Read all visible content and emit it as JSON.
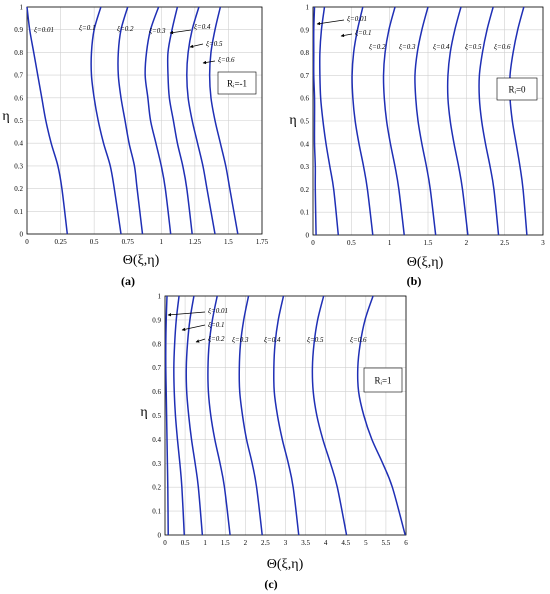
{
  "chart_data": [
    {
      "type": "line",
      "panel_label": "(a)",
      "xlabel": "Θ(ξ,η)",
      "ylabel": "η",
      "xlim": [
        0,
        1.75
      ],
      "ylim": [
        0,
        1
      ],
      "xticks": [
        "0",
        "0.25",
        "0.5",
        "0.75",
        "1",
        "1.25",
        "1.5",
        "1.75"
      ],
      "yticks": [
        "0",
        "0.1",
        "0.2",
        "0.3",
        "0.4",
        "0.5",
        "0.6",
        "0.7",
        "0.8",
        "0.9",
        "1"
      ],
      "grid": true,
      "parameter_box": {
        "text": "Rᵢ=-1",
        "position": "right"
      },
      "series": [
        {
          "name": "ξ=0.01",
          "x": [
            0.0,
            0.02,
            0.05,
            0.08,
            0.11,
            0.14,
            0.18,
            0.23,
            0.26,
            0.3
          ],
          "y": [
            1.0,
            0.9,
            0.8,
            0.7,
            0.6,
            0.5,
            0.4,
            0.3,
            0.2,
            0.0
          ]
        },
        {
          "name": "ξ=0.1",
          "x": [
            0.55,
            0.5,
            0.48,
            0.48,
            0.5,
            0.53,
            0.57,
            0.62,
            0.65,
            0.7
          ],
          "y": [
            1.0,
            0.9,
            0.8,
            0.7,
            0.6,
            0.5,
            0.4,
            0.3,
            0.2,
            0.0
          ]
        },
        {
          "name": "ξ=0.2",
          "x": [
            0.75,
            0.7,
            0.68,
            0.68,
            0.7,
            0.73,
            0.76,
            0.8,
            0.82,
            0.86
          ],
          "y": [
            1.0,
            0.9,
            0.8,
            0.7,
            0.6,
            0.5,
            0.4,
            0.3,
            0.2,
            0.0
          ]
        },
        {
          "name": "ξ=0.3",
          "x": [
            0.98,
            0.92,
            0.89,
            0.88,
            0.9,
            0.92,
            0.96,
            1.0,
            1.03,
            1.07
          ],
          "y": [
            1.0,
            0.9,
            0.8,
            0.7,
            0.6,
            0.5,
            0.4,
            0.3,
            0.2,
            0.0
          ]
        },
        {
          "name": "ξ=0.4",
          "x": [
            1.12,
            1.08,
            1.05,
            1.05,
            1.06,
            1.09,
            1.12,
            1.16,
            1.19,
            1.23
          ],
          "y": [
            1.0,
            0.9,
            0.8,
            0.7,
            0.6,
            0.5,
            0.4,
            0.3,
            0.2,
            0.0
          ]
        },
        {
          "name": "ξ=0.5",
          "x": [
            1.28,
            1.23,
            1.2,
            1.19,
            1.2,
            1.23,
            1.27,
            1.31,
            1.34,
            1.4
          ],
          "y": [
            1.0,
            0.9,
            0.8,
            0.7,
            0.6,
            0.5,
            0.4,
            0.3,
            0.2,
            0.0
          ]
        },
        {
          "name": "ξ=0.6",
          "x": [
            1.44,
            1.4,
            1.37,
            1.36,
            1.37,
            1.4,
            1.44,
            1.48,
            1.51,
            1.57
          ],
          "y": [
            1.0,
            0.9,
            0.8,
            0.7,
            0.6,
            0.5,
            0.4,
            0.3,
            0.2,
            0.0
          ]
        }
      ]
    },
    {
      "type": "line",
      "panel_label": "(b)",
      "xlabel": "Θ(ξ,η)",
      "ylabel": "η",
      "xlim": [
        0,
        3
      ],
      "ylim": [
        0,
        1
      ],
      "xticks": [
        "0",
        "0.5",
        "1",
        "1.5",
        "2",
        "2.5",
        "3"
      ],
      "yticks": [
        "0",
        "0.1",
        "0.2",
        "0.3",
        "0.4",
        "0.5",
        "0.6",
        "0.7",
        "0.8",
        "0.9",
        "1"
      ],
      "grid": true,
      "parameter_box": {
        "text": "Rᵢ=0",
        "position": "right"
      },
      "series": [
        {
          "name": "ξ=0.01",
          "x": [
            0.02,
            0.01,
            0.01,
            0.01,
            0.02,
            0.02,
            0.02,
            0.03,
            0.03,
            0.04
          ],
          "y": [
            1.0,
            0.9,
            0.8,
            0.7,
            0.6,
            0.5,
            0.4,
            0.3,
            0.2,
            0.0
          ]
        },
        {
          "name": "ξ=0.1",
          "x": [
            0.15,
            0.11,
            0.09,
            0.09,
            0.1,
            0.13,
            0.17,
            0.22,
            0.27,
            0.33
          ],
          "y": [
            1.0,
            0.9,
            0.8,
            0.7,
            0.6,
            0.5,
            0.4,
            0.3,
            0.2,
            0.0
          ]
        },
        {
          "name": "ξ=0.2",
          "x": [
            0.65,
            0.58,
            0.53,
            0.51,
            0.52,
            0.55,
            0.6,
            0.66,
            0.71,
            0.78
          ],
          "y": [
            1.0,
            0.9,
            0.8,
            0.7,
            0.6,
            0.5,
            0.4,
            0.3,
            0.2,
            0.0
          ]
        },
        {
          "name": "ξ=0.3",
          "x": [
            1.07,
            0.99,
            0.94,
            0.92,
            0.93,
            0.96,
            1.01,
            1.07,
            1.12,
            1.19
          ],
          "y": [
            1.0,
            0.9,
            0.8,
            0.7,
            0.6,
            0.5,
            0.4,
            0.3,
            0.2,
            0.0
          ]
        },
        {
          "name": "ξ=0.4",
          "x": [
            1.5,
            1.42,
            1.36,
            1.33,
            1.34,
            1.37,
            1.42,
            1.48,
            1.53,
            1.6
          ],
          "y": [
            1.0,
            0.9,
            0.8,
            0.7,
            0.6,
            0.5,
            0.4,
            0.3,
            0.2,
            0.0
          ]
        },
        {
          "name": "ξ=0.5",
          "x": [
            1.93,
            1.85,
            1.79,
            1.76,
            1.76,
            1.79,
            1.84,
            1.9,
            1.95,
            2.02
          ],
          "y": [
            1.0,
            0.9,
            0.8,
            0.7,
            0.6,
            0.5,
            0.4,
            0.3,
            0.2,
            0.0
          ]
        },
        {
          "name": "ξ=0.6",
          "x": [
            2.35,
            2.27,
            2.21,
            2.17,
            2.17,
            2.2,
            2.25,
            2.31,
            2.36,
            2.42
          ],
          "y": [
            1.0,
            0.9,
            0.8,
            0.7,
            0.6,
            0.5,
            0.4,
            0.3,
            0.2,
            0.0
          ]
        },
        {
          "name": "",
          "x": [
            2.75,
            2.67,
            2.61,
            2.57,
            2.57,
            2.6,
            2.65,
            2.7,
            2.74,
            2.79
          ],
          "y": [
            1.0,
            0.9,
            0.8,
            0.7,
            0.6,
            0.5,
            0.4,
            0.3,
            0.2,
            0.0
          ]
        }
      ]
    },
    {
      "type": "line",
      "panel_label": "(c)",
      "xlabel": "Θ(ξ,η)",
      "ylabel": "η",
      "xlim": [
        0,
        6
      ],
      "ylim": [
        0,
        1
      ],
      "xticks": [
        "0",
        "0.5",
        "1",
        "1.5",
        "2",
        "2.5",
        "3",
        "3.5",
        "4",
        "4.5",
        "5",
        "5.5",
        "6"
      ],
      "yticks": [
        "0",
        "0.1",
        "0.2",
        "0.3",
        "0.4",
        "0.5",
        "0.6",
        "0.7",
        "0.8",
        "0.9",
        "1"
      ],
      "grid": true,
      "parameter_box": {
        "text": "Rᵢ=1",
        "position": "right"
      },
      "series": [
        {
          "name": "ξ=0.01",
          "x": [
            0.05,
            0.03,
            0.02,
            0.02,
            0.03,
            0.04,
            0.05,
            0.06,
            0.07,
            0.08
          ],
          "y": [
            1.0,
            0.9,
            0.8,
            0.7,
            0.6,
            0.5,
            0.4,
            0.3,
            0.2,
            0.0
          ]
        },
        {
          "name": "ξ=0.1",
          "x": [
            0.35,
            0.28,
            0.24,
            0.22,
            0.23,
            0.26,
            0.31,
            0.37,
            0.42,
            0.48
          ],
          "y": [
            1.0,
            0.9,
            0.8,
            0.7,
            0.6,
            0.5,
            0.4,
            0.3,
            0.2,
            0.0
          ]
        },
        {
          "name": "ξ=0.2",
          "x": [
            0.72,
            0.62,
            0.56,
            0.53,
            0.54,
            0.59,
            0.66,
            0.75,
            0.83,
            0.93
          ],
          "y": [
            1.0,
            0.9,
            0.8,
            0.7,
            0.6,
            0.5,
            0.4,
            0.3,
            0.2,
            0.0
          ]
        },
        {
          "name": "ξ=0.3",
          "x": [
            1.3,
            1.18,
            1.1,
            1.07,
            1.08,
            1.14,
            1.24,
            1.37,
            1.48,
            1.62
          ],
          "y": [
            1.0,
            0.9,
            0.8,
            0.7,
            0.6,
            0.5,
            0.4,
            0.3,
            0.2,
            0.0
          ]
        },
        {
          "name": "",
          "x": [
            2.08,
            1.96,
            1.88,
            1.85,
            1.86,
            1.93,
            2.03,
            2.17,
            2.28,
            2.42
          ],
          "y": [
            1.0,
            0.9,
            0.8,
            0.7,
            0.6,
            0.5,
            0.4,
            0.3,
            0.2,
            0.0
          ]
        },
        {
          "name": "ξ=0.4",
          "x": [
            2.95,
            2.82,
            2.74,
            2.71,
            2.72,
            2.8,
            2.92,
            3.07,
            3.19,
            3.33
          ],
          "y": [
            1.0,
            0.9,
            0.8,
            0.7,
            0.6,
            0.5,
            0.4,
            0.3,
            0.2,
            0.0
          ]
        },
        {
          "name": "ξ=0.5",
          "x": [
            3.95,
            3.8,
            3.71,
            3.67,
            3.69,
            3.78,
            3.93,
            4.12,
            4.29,
            4.52
          ],
          "y": [
            1.0,
            0.9,
            0.8,
            0.7,
            0.6,
            0.5,
            0.4,
            0.3,
            0.2,
            0.0
          ]
        },
        {
          "name": "ξ=0.6",
          "x": [
            5.18,
            4.98,
            4.86,
            4.8,
            4.82,
            4.95,
            5.15,
            5.42,
            5.66,
            5.98
          ],
          "y": [
            1.0,
            0.9,
            0.8,
            0.7,
            0.6,
            0.5,
            0.4,
            0.3,
            0.2,
            0.0
          ]
        }
      ]
    }
  ]
}
